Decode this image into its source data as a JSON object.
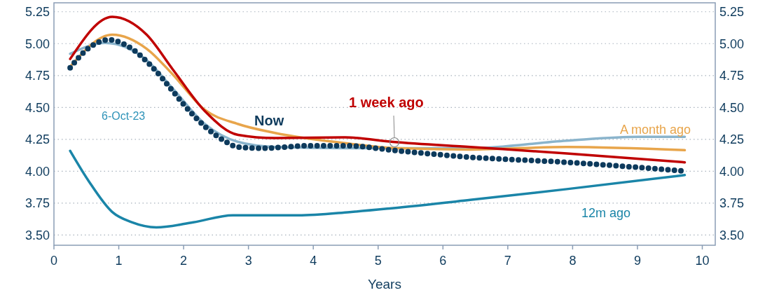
{
  "chart_data": {
    "type": "line",
    "xlabel": "Years",
    "xlim": [
      0,
      10.2
    ],
    "xticks": [
      0,
      1,
      2,
      3,
      4,
      5,
      6,
      7,
      8,
      9,
      10
    ],
    "ylim": [
      3.42,
      5.32
    ],
    "yticks": [
      {
        "value": 3.5,
        "label": "3.50"
      },
      {
        "value": 3.75,
        "label": "3.75"
      },
      {
        "value": 4,
        "label": "4.00"
      },
      {
        "value": 4.25,
        "label": "4.25"
      },
      {
        "value": 4.5,
        "label": "4.50"
      },
      {
        "value": 4.75,
        "label": "4.75"
      },
      {
        "value": 5,
        "label": "5.00"
      },
      {
        "value": 5.25,
        "label": "5.25"
      }
    ],
    "y2lim": [
      3.42,
      5.32
    ],
    "y2ticks": [
      {
        "value": 3.5,
        "label": "3.50"
      },
      {
        "value": 3.75,
        "label": "3.75"
      },
      {
        "value": 4,
        "label": "4.00"
      },
      {
        "value": 4.25,
        "label": "4.25"
      },
      {
        "value": 4.5,
        "label": "4.50"
      },
      {
        "value": 4.75,
        "label": "4.75"
      },
      {
        "value": 5,
        "label": "5.00"
      },
      {
        "value": 5.25,
        "label": "5.25"
      }
    ],
    "grid": "y",
    "annotations": [
      "6-Oct-23"
    ],
    "series": [
      {
        "name": "12m ago",
        "color": "#1a85a8",
        "x": [
          0.25,
          0.54,
          0.9,
          1.2,
          1.58,
          2.15,
          2.76,
          3.77,
          4.56,
          5.21,
          6.42,
          7.91,
          9.73
        ],
        "values": [
          4.16,
          3.92,
          3.68,
          3.6,
          3.56,
          3.6,
          3.655,
          3.655,
          3.68,
          3.71,
          3.775,
          3.86,
          3.97
        ]
      },
      {
        "color": "#8ab4cc",
        "x": [
          0.25,
          0.79,
          1.43,
          1.83,
          2.33,
          2.84,
          3.41,
          4.49,
          6.42,
          7.91,
          9.03,
          9.73
        ],
        "values": [
          4.92,
          5.005,
          4.87,
          4.65,
          4.37,
          4.23,
          4.19,
          4.18,
          4.18,
          4.24,
          4.27,
          4.27
        ]
      },
      {
        "name": "A month ago",
        "color": "#e8a54b",
        "x": [
          0.25,
          0.9,
          1.43,
          1.83,
          2.33,
          2.84,
          3.41,
          4.49,
          5.31,
          6.42,
          7.91,
          9.73
        ],
        "values": [
          4.82,
          5.07,
          4.96,
          4.76,
          4.48,
          4.37,
          4.3,
          4.22,
          4.18,
          4.17,
          4.19,
          4.165
        ]
      },
      {
        "name": "1 week ago",
        "color": "#c00000",
        "x": [
          0.25,
          0.9,
          1.43,
          1.83,
          2.33,
          2.84,
          3.41,
          4.49,
          5.23,
          6.42,
          7.91,
          9.73
        ],
        "values": [
          4.88,
          5.21,
          5.07,
          4.8,
          4.47,
          4.285,
          4.26,
          4.265,
          4.23,
          4.19,
          4.14,
          4.07
        ]
      },
      {
        "name": "Now",
        "color": "#0d3a5c",
        "line_style": "dotted",
        "x": [
          0.25,
          0.5,
          0.85,
          1.17,
          1.51,
          1.83,
          1.99,
          2.33,
          2.59,
          2.84,
          3.2,
          3.95,
          4.49,
          5.31,
          6.42,
          7.91,
          9.75
        ],
        "values": [
          4.81,
          4.95,
          5.03,
          4.97,
          4.82,
          4.63,
          4.53,
          4.35,
          4.25,
          4.19,
          4.18,
          4.2,
          4.2,
          4.16,
          4.11,
          4.07,
          4.0
        ]
      }
    ]
  }
}
